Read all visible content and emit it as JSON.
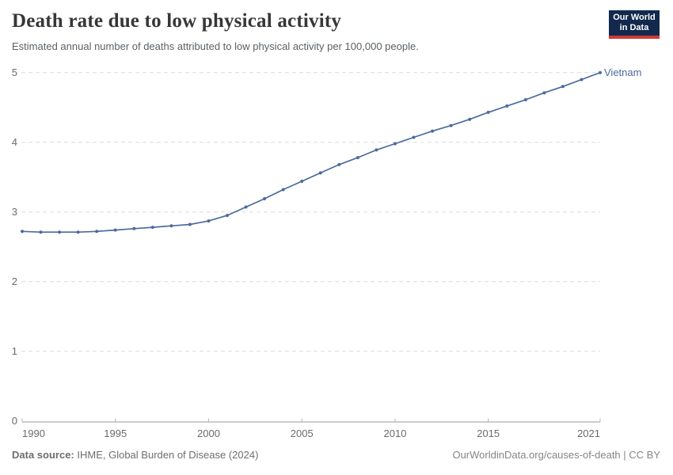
{
  "header": {
    "title": "Death rate due to low physical activity",
    "subtitle": "Estimated annual number of deaths attributed to low physical activity per 100,000 people.",
    "logo": {
      "line1": "Our World",
      "line2": "in Data"
    }
  },
  "chart_data": {
    "type": "line",
    "title": "Death rate due to low physical activity",
    "entity_label": "Vietnam",
    "x": [
      1990,
      1991,
      1992,
      1993,
      1994,
      1995,
      1996,
      1997,
      1998,
      1999,
      2000,
      2001,
      2002,
      2003,
      2004,
      2005,
      2006,
      2007,
      2008,
      2009,
      2010,
      2011,
      2012,
      2013,
      2014,
      2015,
      2016,
      2017,
      2018,
      2019,
      2020,
      2021
    ],
    "series": [
      {
        "name": "Vietnam",
        "values": [
          2.72,
          2.71,
          2.71,
          2.71,
          2.72,
          2.74,
          2.76,
          2.78,
          2.8,
          2.82,
          2.87,
          2.95,
          3.07,
          3.19,
          3.32,
          3.44,
          3.56,
          3.68,
          3.78,
          3.89,
          3.98,
          4.07,
          4.16,
          4.24,
          4.33,
          4.43,
          4.52,
          4.61,
          4.71,
          4.8,
          4.9,
          5.0
        ]
      }
    ],
    "xlim": [
      1990,
      2021
    ],
    "ylim": [
      0,
      5
    ],
    "xticks": [
      1990,
      1995,
      2000,
      2005,
      2010,
      2015,
      2021
    ],
    "yticks": [
      0,
      1,
      2,
      3,
      4,
      5
    ],
    "grid": true,
    "legend_position": "end-of-line-label",
    "colors": {
      "line": "#4C6A9C",
      "entity_label": "#4C6A9C",
      "gridline": "#dcdcdc",
      "axis_line": "#9a9a9a",
      "tick_mark": "#b5b5b5",
      "tick_label": "#6b6b6b",
      "logo_bg": "#12294d",
      "logo_accent": "#cf3b33"
    }
  },
  "footer": {
    "source_label": "Data source:",
    "source_value": "IHME, Global Burden of Disease (2024)",
    "link": "OurWorldinData.org/causes-of-death | CC BY"
  }
}
